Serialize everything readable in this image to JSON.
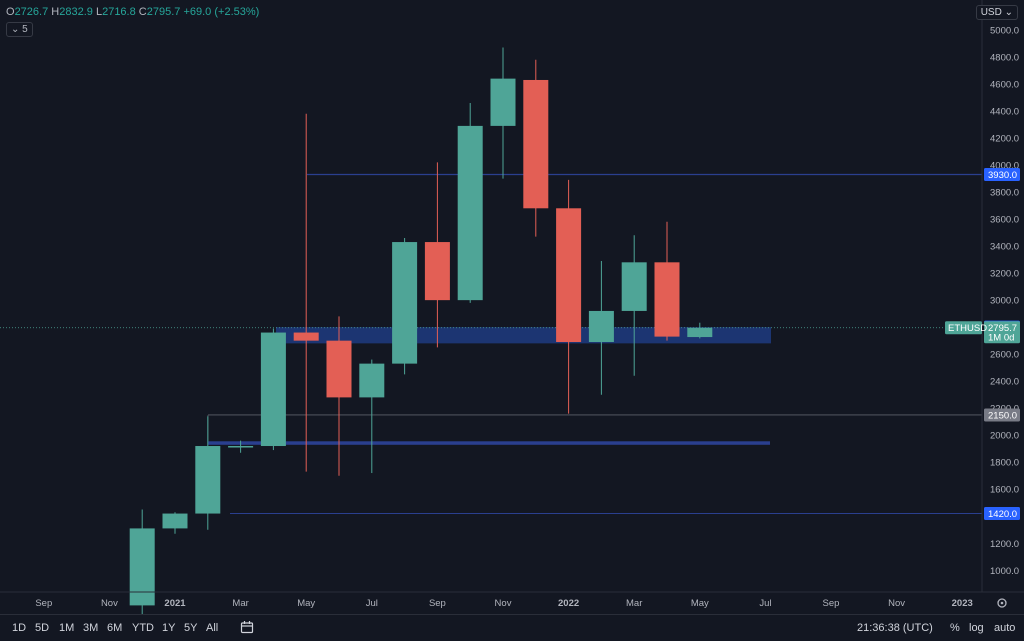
{
  "header": {
    "open_label": "O",
    "open": "2726.7",
    "high_label": "H",
    "high": "2832.9",
    "low_label": "L",
    "low": "2716.8",
    "close_label": "C",
    "close": "2795.7",
    "change": "+69.0 (+2.53%)",
    "indicator_count": "5",
    "currency": "USD"
  },
  "colors": {
    "up": "#4fa597",
    "down": "#e35f55",
    "background": "#131722",
    "zone": "#1f3b80",
    "level": "#2962ff"
  },
  "chart_data": {
    "type": "candlestick",
    "symbol": "ETHUSD",
    "interval": "1M",
    "ylim": [
      800,
      5300
    ],
    "y_ticks": [
      "5000.0",
      "4800.0",
      "4600.0",
      "4400.0",
      "4200.0",
      "4000.0",
      "3800.0",
      "3600.0",
      "3400.0",
      "3200.0",
      "3000.0",
      "2800.0",
      "2600.0",
      "2400.0",
      "2200.0",
      "2000.0",
      "1800.0",
      "1600.0",
      "1400.0",
      "1200.0",
      "1000.0"
    ],
    "x_ticks": [
      "Sep",
      "Nov",
      "2021",
      "Mar",
      "May",
      "Jul",
      "Sep",
      "Nov",
      "2022",
      "Mar",
      "May",
      "Jul",
      "Sep",
      "Nov",
      "2023"
    ],
    "candles": [
      {
        "m": "2020-12",
        "o": 740,
        "h": 1450,
        "l": 600,
        "c": 1310
      },
      {
        "m": "2021-01",
        "o": 1310,
        "h": 1430,
        "l": 1270,
        "c": 1420
      },
      {
        "m": "2021-02",
        "o": 1420,
        "h": 2140,
        "l": 1300,
        "c": 1920
      },
      {
        "m": "2021-03",
        "o": 1920,
        "h": 1960,
        "l": 1870,
        "c": 1920
      },
      {
        "m": "2021-04",
        "o": 1920,
        "h": 2790,
        "l": 1890,
        "c": 2760
      },
      {
        "m": "2021-05",
        "o": 2760,
        "h": 4380,
        "l": 1730,
        "c": 2700
      },
      {
        "m": "2021-06",
        "o": 2700,
        "h": 2880,
        "l": 1700,
        "c": 2280
      },
      {
        "m": "2021-07",
        "o": 2280,
        "h": 2560,
        "l": 1720,
        "c": 2530
      },
      {
        "m": "2021-08",
        "o": 2530,
        "h": 3460,
        "l": 2450,
        "c": 3430
      },
      {
        "m": "2021-09",
        "o": 3430,
        "h": 4020,
        "l": 2650,
        "c": 3000
      },
      {
        "m": "2021-10",
        "o": 3000,
        "h": 4460,
        "l": 2980,
        "c": 4290
      },
      {
        "m": "2021-11",
        "o": 4290,
        "h": 4870,
        "l": 3900,
        "c": 4640
      },
      {
        "m": "2021-12",
        "o": 4630,
        "h": 4780,
        "l": 3470,
        "c": 3680
      },
      {
        "m": "2022-01",
        "o": 3680,
        "h": 3890,
        "l": 2160,
        "c": 2690
      },
      {
        "m": "2022-02",
        "o": 2690,
        "h": 3290,
        "l": 2300,
        "c": 2920
      },
      {
        "m": "2022-03",
        "o": 2920,
        "h": 3480,
        "l": 2440,
        "c": 3280
      },
      {
        "m": "2022-04",
        "o": 3280,
        "h": 3580,
        "l": 2700,
        "c": 2730
      },
      {
        "m": "2022-05",
        "o": 2726.7,
        "h": 2832.9,
        "l": 2716.8,
        "c": 2795.7
      }
    ],
    "levels": [
      "3930.0",
      "2150.0",
      "1420.0"
    ],
    "zones": [
      "2800.0"
    ],
    "symbol_tag": "ETHUSD",
    "price_tag": "2795.7",
    "price_tag_sub": "1M 0d"
  },
  "toolbar": {
    "ranges": [
      "1D",
      "5D",
      "1M",
      "3M",
      "6M",
      "YTD",
      "1Y",
      "5Y",
      "All"
    ],
    "time": "21:36:38 (UTC)",
    "pct": "%",
    "log": "log",
    "auto": "auto"
  }
}
